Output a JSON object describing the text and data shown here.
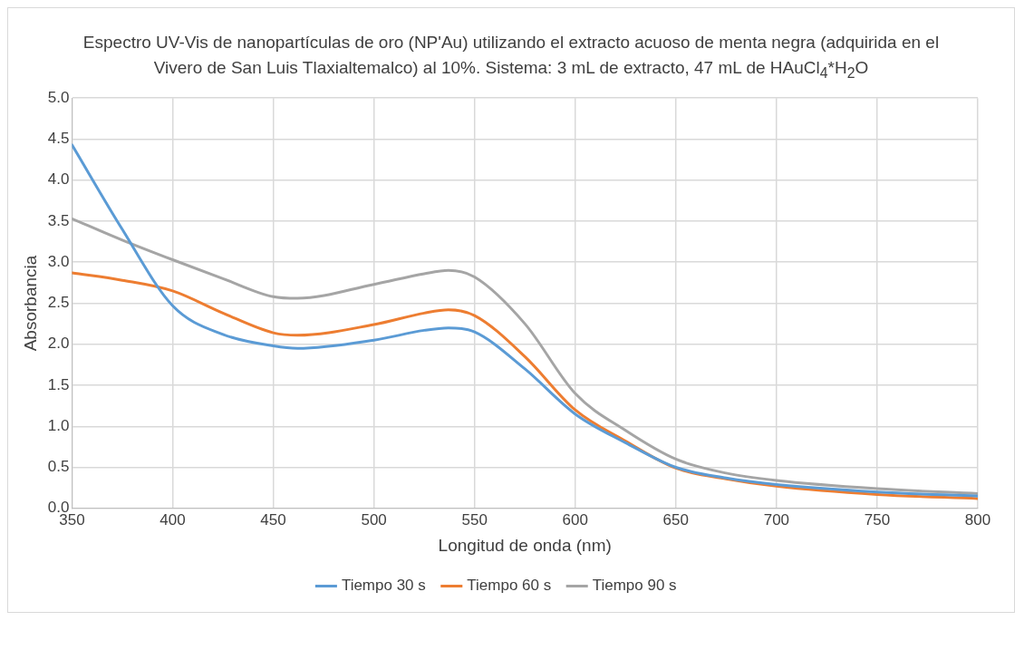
{
  "chart_data": {
    "type": "line",
    "title": "Espectro UV-Vis de nanopartículas de oro (NP'Au) utilizando el extracto acuoso de menta negra (adquirida en el Vivero de San Luis Tlaxialtemalco) al 10%. Sistema: 3 mL de extracto, 47 mL de HAuCl$_{4}$*H$_{2}$O",
    "xlabel": "Longitud de onda (nm)",
    "ylabel": "Absorbancia",
    "x": [
      350,
      375,
      400,
      425,
      450,
      462,
      500,
      525,
      537,
      550,
      575,
      600,
      625,
      650,
      675,
      700,
      750,
      800
    ],
    "series": [
      {
        "name": "Tiempo 30 s",
        "color": "#5b9bd5",
        "values": [
          4.43,
          3.4,
          2.47,
          2.12,
          1.98,
          1.95,
          2.05,
          2.17,
          2.2,
          2.15,
          1.7,
          1.15,
          0.8,
          0.5,
          0.37,
          0.29,
          0.2,
          0.15
        ]
      },
      {
        "name": "Tiempo 60 s",
        "color": "#ed7d31",
        "values": [
          2.87,
          2.78,
          2.65,
          2.38,
          2.14,
          2.11,
          2.24,
          2.38,
          2.42,
          2.35,
          1.85,
          1.2,
          0.82,
          0.49,
          0.36,
          0.27,
          0.17,
          0.12
        ]
      },
      {
        "name": "Tiempo 90 s",
        "color": "#a5a5a5",
        "values": [
          3.53,
          3.27,
          3.03,
          2.8,
          2.58,
          2.56,
          2.73,
          2.86,
          2.9,
          2.82,
          2.25,
          1.4,
          0.95,
          0.6,
          0.43,
          0.34,
          0.24,
          0.18
        ]
      }
    ],
    "xlim": [
      350,
      800
    ],
    "xticks": [
      350,
      400,
      450,
      500,
      550,
      600,
      650,
      700,
      750,
      800
    ],
    "ylim": [
      0,
      5
    ],
    "yticks": [
      {
        "value": 0,
        "label": "0.0"
      },
      {
        "value": 0.5,
        "label": "0.5"
      },
      {
        "value": 1,
        "label": "1.0"
      },
      {
        "value": 1.5,
        "label": "1.5"
      },
      {
        "value": 2,
        "label": "2.0"
      },
      {
        "value": 2.5,
        "label": "2.5"
      },
      {
        "value": 3,
        "label": "3.0"
      },
      {
        "value": 3.5,
        "label": "3.5"
      },
      {
        "value": 4,
        "label": "4.0"
      },
      {
        "value": 4.5,
        "label": "4.5"
      },
      {
        "value": 5,
        "label": "5.0"
      }
    ],
    "grid": true,
    "legend": "bottom",
    "marker": "none",
    "line_style": "solid"
  }
}
